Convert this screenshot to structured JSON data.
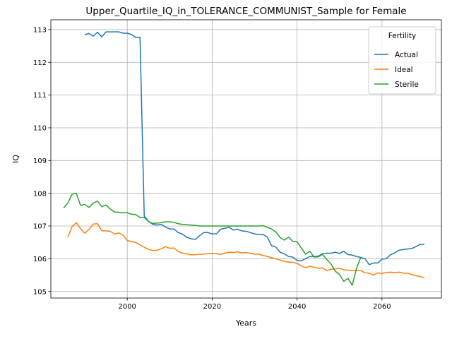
{
  "chart_data": {
    "type": "line",
    "title": "Upper_Quartile_IQ_in_TOLERANCE_COMMUNIST_Sample for Female",
    "xlabel": "Years",
    "ylabel": "IQ",
    "xlim": [
      1982,
      2074
    ],
    "ylim": [
      104.8,
      113.3
    ],
    "xticks": [
      2000,
      2020,
      2040,
      2060
    ],
    "yticks": [
      105,
      106,
      107,
      108,
      109,
      110,
      111,
      112,
      113
    ],
    "grid": true,
    "legend": {
      "title": "Fertility",
      "position": "top-right"
    },
    "series": [
      {
        "name": "Actual",
        "color": "#1f77b4",
        "points": [
          [
            1990,
            112.85
          ],
          [
            1991,
            112.88
          ],
          [
            1992,
            112.8
          ],
          [
            1993,
            112.92
          ],
          [
            1994,
            112.78
          ],
          [
            1995,
            112.93
          ],
          [
            1996,
            112.93
          ],
          [
            1997,
            112.93
          ],
          [
            1998,
            112.93
          ],
          [
            1999,
            112.89
          ],
          [
            2000,
            112.89
          ],
          [
            2001,
            112.85
          ],
          [
            2002,
            112.76
          ],
          [
            2003,
            112.76
          ],
          [
            2004,
            107.3
          ],
          [
            2005,
            107.15
          ],
          [
            2006,
            107.05
          ],
          [
            2007,
            107.03
          ],
          [
            2008,
            107.05
          ],
          [
            2009,
            106.97
          ],
          [
            2010,
            106.91
          ],
          [
            2011,
            106.91
          ],
          [
            2012,
            106.8
          ],
          [
            2013,
            106.75
          ],
          [
            2014,
            106.66
          ],
          [
            2015,
            106.61
          ],
          [
            2016,
            106.59
          ],
          [
            2017,
            106.7
          ],
          [
            2018,
            106.8
          ],
          [
            2019,
            106.8
          ],
          [
            2020,
            106.76
          ],
          [
            2021,
            106.76
          ],
          [
            2022,
            106.9
          ],
          [
            2023,
            106.93
          ],
          [
            2024,
            106.96
          ],
          [
            2025,
            106.88
          ],
          [
            2026,
            106.9
          ],
          [
            2027,
            106.85
          ],
          [
            2028,
            106.84
          ],
          [
            2029,
            106.8
          ],
          [
            2030,
            106.76
          ],
          [
            2031,
            106.74
          ],
          [
            2032,
            106.74
          ],
          [
            2033,
            106.66
          ],
          [
            2034,
            106.4
          ],
          [
            2035,
            106.36
          ],
          [
            2036,
            106.2
          ],
          [
            2037,
            106.15
          ],
          [
            2038,
            106.07
          ],
          [
            2039,
            106.05
          ],
          [
            2040,
            105.95
          ],
          [
            2041,
            105.94
          ],
          [
            2042,
            106.0
          ],
          [
            2043,
            106.07
          ],
          [
            2044,
            106.07
          ],
          [
            2045,
            106.08
          ],
          [
            2046,
            106.15
          ],
          [
            2047,
            106.17
          ],
          [
            2048,
            106.17
          ],
          [
            2049,
            106.2
          ],
          [
            2050,
            106.16
          ],
          [
            2051,
            106.23
          ],
          [
            2052,
            106.13
          ],
          [
            2053,
            106.11
          ],
          [
            2054,
            106.07
          ],
          [
            2055,
            106.04
          ],
          [
            2056,
            106.0
          ],
          [
            2057,
            105.82
          ],
          [
            2058,
            105.87
          ],
          [
            2059,
            105.87
          ],
          [
            2060,
            105.99
          ],
          [
            2061,
            106.0
          ],
          [
            2062,
            106.12
          ],
          [
            2063,
            106.18
          ],
          [
            2064,
            106.26
          ],
          [
            2065,
            106.28
          ],
          [
            2066,
            106.3
          ],
          [
            2067,
            106.31
          ],
          [
            2068,
            106.37
          ],
          [
            2069,
            106.44
          ],
          [
            2070,
            106.44
          ]
        ]
      },
      {
        "name": "Ideal",
        "color": "#ff7f0e",
        "points": [
          [
            1986,
            106.66
          ],
          [
            1987,
            106.98
          ],
          [
            1988,
            107.1
          ],
          [
            1989,
            106.92
          ],
          [
            1990,
            106.78
          ],
          [
            1991,
            106.9
          ],
          [
            1992,
            107.06
          ],
          [
            1993,
            107.07
          ],
          [
            1994,
            106.86
          ],
          [
            1995,
            106.85
          ],
          [
            1996,
            106.84
          ],
          [
            1997,
            106.75
          ],
          [
            1998,
            106.79
          ],
          [
            1999,
            106.72
          ],
          [
            2000,
            106.56
          ],
          [
            2001,
            106.52
          ],
          [
            2002,
            106.5
          ],
          [
            2003,
            106.42
          ],
          [
            2004,
            106.35
          ],
          [
            2005,
            106.29
          ],
          [
            2006,
            106.25
          ],
          [
            2007,
            106.26
          ],
          [
            2008,
            106.3
          ],
          [
            2009,
            106.37
          ],
          [
            2010,
            106.32
          ],
          [
            2011,
            106.33
          ],
          [
            2012,
            106.22
          ],
          [
            2013,
            106.17
          ],
          [
            2014,
            106.15
          ],
          [
            2015,
            106.12
          ],
          [
            2016,
            106.12
          ],
          [
            2017,
            106.14
          ],
          [
            2018,
            106.14
          ],
          [
            2019,
            106.16
          ],
          [
            2020,
            106.16
          ],
          [
            2021,
            106.16
          ],
          [
            2022,
            106.13
          ],
          [
            2023,
            106.17
          ],
          [
            2024,
            106.2
          ],
          [
            2025,
            106.19
          ],
          [
            2026,
            106.21
          ],
          [
            2027,
            106.18
          ],
          [
            2028,
            106.19
          ],
          [
            2029,
            106.17
          ],
          [
            2030,
            106.14
          ],
          [
            2031,
            106.14
          ],
          [
            2032,
            106.1
          ],
          [
            2033,
            106.07
          ],
          [
            2034,
            106.03
          ],
          [
            2035,
            106.0
          ],
          [
            2036,
            105.96
          ],
          [
            2037,
            105.92
          ],
          [
            2038,
            105.9
          ],
          [
            2039,
            105.89
          ],
          [
            2040,
            105.86
          ],
          [
            2041,
            105.78
          ],
          [
            2042,
            105.73
          ],
          [
            2043,
            105.77
          ],
          [
            2044,
            105.74
          ],
          [
            2045,
            105.71
          ],
          [
            2046,
            105.72
          ],
          [
            2047,
            105.64
          ],
          [
            2048,
            105.68
          ],
          [
            2049,
            105.69
          ],
          [
            2050,
            105.71
          ],
          [
            2051,
            105.66
          ],
          [
            2052,
            105.65
          ],
          [
            2053,
            105.64
          ],
          [
            2054,
            105.65
          ],
          [
            2055,
            105.64
          ],
          [
            2056,
            105.57
          ],
          [
            2057,
            105.56
          ],
          [
            2058,
            105.5
          ],
          [
            2059,
            105.57
          ],
          [
            2060,
            105.55
          ],
          [
            2061,
            105.58
          ],
          [
            2062,
            105.59
          ],
          [
            2063,
            105.58
          ],
          [
            2064,
            105.59
          ],
          [
            2065,
            105.56
          ],
          [
            2066,
            105.56
          ],
          [
            2067,
            105.52
          ],
          [
            2068,
            105.48
          ],
          [
            2069,
            105.46
          ],
          [
            2070,
            105.41
          ]
        ]
      },
      {
        "name": "Sterile",
        "color": "#2ca02c",
        "points": [
          [
            1985,
            107.55
          ],
          [
            1986,
            107.7
          ],
          [
            1987,
            107.97
          ],
          [
            1988,
            108.0
          ],
          [
            1989,
            107.63
          ],
          [
            1990,
            107.66
          ],
          [
            1991,
            107.57
          ],
          [
            1992,
            107.7
          ],
          [
            1993,
            107.76
          ],
          [
            1994,
            107.59
          ],
          [
            1995,
            107.64
          ],
          [
            1996,
            107.52
          ],
          [
            1997,
            107.43
          ],
          [
            1998,
            107.42
          ],
          [
            1999,
            107.4
          ],
          [
            2000,
            107.41
          ],
          [
            2001,
            107.36
          ],
          [
            2002,
            107.35
          ],
          [
            2003,
            107.26
          ],
          [
            2004,
            107.26
          ],
          [
            2005,
            107.14
          ],
          [
            2006,
            107.08
          ],
          [
            2007,
            107.09
          ],
          [
            2008,
            107.1
          ],
          [
            2009,
            107.13
          ],
          [
            2010,
            107.13
          ],
          [
            2011,
            107.11
          ],
          [
            2012,
            107.07
          ],
          [
            2013,
            107.05
          ],
          [
            2014,
            107.04
          ],
          [
            2015,
            107.03
          ],
          [
            2016,
            107.02
          ],
          [
            2017,
            107.0
          ],
          [
            2018,
            107.0
          ],
          [
            2019,
            107.0
          ],
          [
            2020,
            107.0
          ],
          [
            2021,
            107.0
          ],
          [
            2022,
            107.0
          ],
          [
            2023,
            107.0
          ],
          [
            2024,
            107.0
          ],
          [
            2025,
            107.0
          ],
          [
            2026,
            107.0
          ],
          [
            2027,
            107.0
          ],
          [
            2028,
            107.0
          ],
          [
            2029,
            107.0
          ],
          [
            2030,
            107.0
          ],
          [
            2031,
            107.0
          ],
          [
            2032,
            107.01
          ],
          [
            2033,
            106.96
          ],
          [
            2034,
            106.91
          ],
          [
            2035,
            106.82
          ],
          [
            2036,
            106.65
          ],
          [
            2037,
            106.57
          ],
          [
            2038,
            106.66
          ],
          [
            2039,
            106.53
          ],
          [
            2040,
            106.52
          ],
          [
            2041,
            106.33
          ],
          [
            2042,
            106.14
          ],
          [
            2043,
            106.23
          ],
          [
            2044,
            106.05
          ],
          [
            2045,
            106.06
          ],
          [
            2046,
            106.13
          ],
          [
            2047,
            105.98
          ],
          [
            2048,
            105.84
          ],
          [
            2049,
            105.62
          ],
          [
            2050,
            105.52
          ],
          [
            2051,
            105.31
          ],
          [
            2052,
            105.4
          ],
          [
            2053,
            105.19
          ],
          [
            2054,
            105.7
          ],
          [
            2055,
            106.05
          ]
        ]
      }
    ]
  }
}
